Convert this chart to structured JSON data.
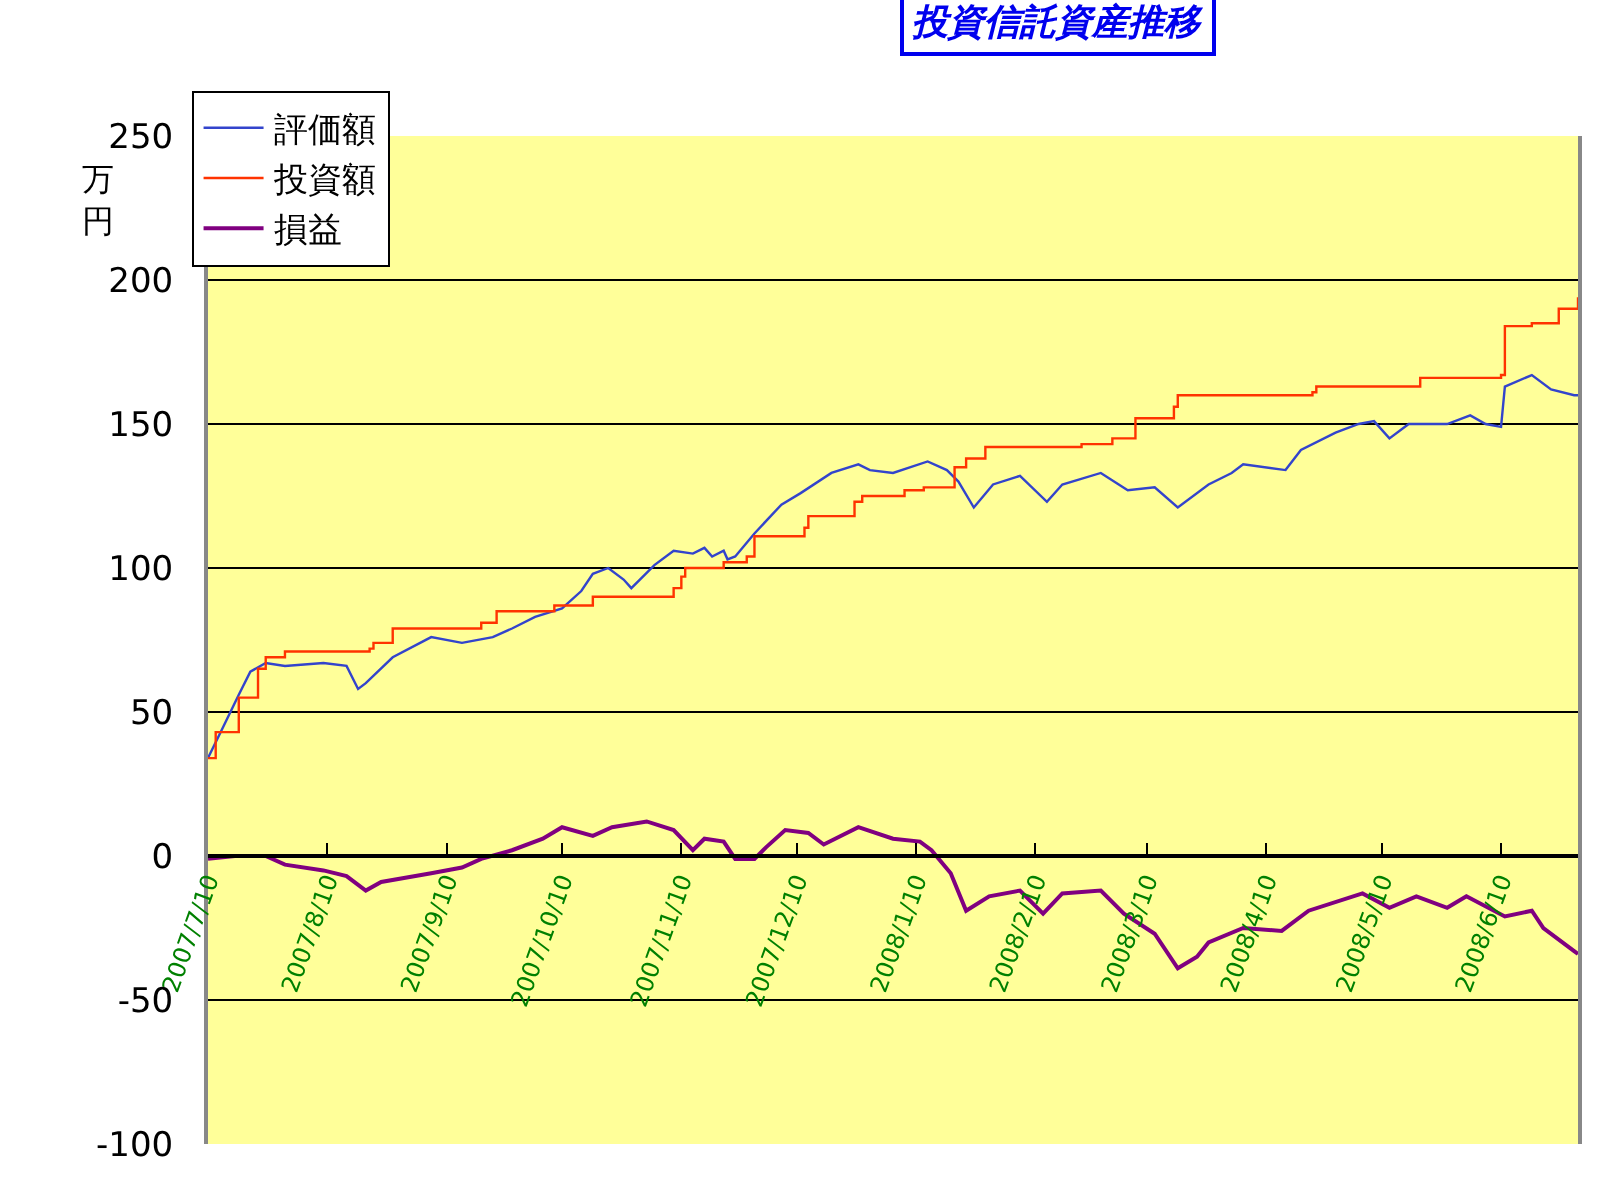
{
  "chart_data": {
    "type": "line",
    "title": "投資信託資産推移",
    "ylabel": "万円",
    "ylim": [
      -100,
      250
    ],
    "yticks": [
      -100,
      -50,
      0,
      50,
      100,
      150,
      200,
      250
    ],
    "xlim": [
      "2007-07-10",
      "2008-06-30"
    ],
    "xticks": [
      {
        "value": "2007-07-10",
        "label": "2007/7/10"
      },
      {
        "value": "2007-08-10",
        "label": "2007/8/10"
      },
      {
        "value": "2007-09-10",
        "label": "2007/9/10"
      },
      {
        "value": "2007-10-10",
        "label": "2007/10/10"
      },
      {
        "value": "2007-11-10",
        "label": "2007/11/10"
      },
      {
        "value": "2007-12-10",
        "label": "2007/12/10"
      },
      {
        "value": "2008-01-10",
        "label": "2008/1/10"
      },
      {
        "value": "2008-02-10",
        "label": "2008/2/10"
      },
      {
        "value": "2008-03-10",
        "label": "2008/3/10"
      },
      {
        "value": "2008-04-10",
        "label": "2008/4/10"
      },
      {
        "value": "2008-05-10",
        "label": "2008/5/10"
      },
      {
        "value": "2008-06-10",
        "label": "2008/6/10"
      }
    ],
    "grid": "y",
    "legend": "top left",
    "marker": "none",
    "line_style": "solid",
    "series": [
      {
        "name": "評価額",
        "color": "#3344cc",
        "x": [
          "2007-07-10",
          "2007-07-14",
          "2007-07-18",
          "2007-07-21",
          "2007-07-25",
          "2007-07-30",
          "2007-08-09",
          "2007-08-15",
          "2007-08-18",
          "2007-08-20",
          "2007-08-27",
          "2007-09-06",
          "2007-09-14",
          "2007-09-22",
          "2007-09-27",
          "2007-10-03",
          "2007-10-10",
          "2007-10-15",
          "2007-10-18",
          "2007-10-22",
          "2007-10-26",
          "2007-10-28",
          "2007-11-03",
          "2007-11-08",
          "2007-11-13",
          "2007-11-16",
          "2007-11-18",
          "2007-11-21",
          "2007-11-22",
          "2007-11-24",
          "2007-11-29",
          "2007-12-06",
          "2007-12-11",
          "2007-12-19",
          "2007-12-26",
          "2007-12-29",
          "2008-01-04",
          "2008-01-13",
          "2008-01-18",
          "2008-01-21",
          "2008-01-25",
          "2008-01-30",
          "2008-02-06",
          "2008-02-13",
          "2008-02-17",
          "2008-02-27",
          "2008-03-05",
          "2008-03-12",
          "2008-03-18",
          "2008-03-26",
          "2008-04-01",
          "2008-04-04",
          "2008-04-15",
          "2008-04-19",
          "2008-04-28",
          "2008-05-04",
          "2008-05-08",
          "2008-05-12",
          "2008-05-17",
          "2008-05-27",
          "2008-06-02",
          "2008-06-06",
          "2008-06-10",
          "2008-06-11",
          "2008-06-18",
          "2008-06-23",
          "2008-06-29",
          "2008-06-30"
        ],
        "values": [
          34,
          45,
          56,
          64,
          67,
          66,
          67,
          66,
          58,
          60,
          69,
          76,
          74,
          76,
          79,
          83,
          86,
          92,
          98,
          100,
          96,
          93,
          101,
          106,
          105,
          107,
          104,
          106,
          103,
          104,
          112,
          122,
          126,
          133,
          136,
          134,
          133,
          137,
          134,
          130,
          121,
          129,
          132,
          123,
          129,
          133,
          127,
          128,
          121,
          129,
          133,
          136,
          134,
          141,
          147,
          150,
          151,
          145,
          150,
          150,
          153,
          150,
          149,
          163,
          167,
          162,
          160,
          160
        ]
      },
      {
        "name": "投資額",
        "color": "#ff3300",
        "type": "step",
        "x": [
          "2007-07-10",
          "2007-07-12",
          "2007-07-18",
          "2007-07-23",
          "2007-07-25",
          "2007-07-30",
          "2007-08-21",
          "2007-08-22",
          "2007-08-27",
          "2007-09-19",
          "2007-09-23",
          "2007-10-08",
          "2007-10-18",
          "2007-11-08",
          "2007-11-10",
          "2007-11-11",
          "2007-11-21",
          "2007-11-27",
          "2007-11-29",
          "2007-12-12",
          "2007-12-13",
          "2007-12-25",
          "2007-12-27",
          "2008-01-07",
          "2008-01-12",
          "2008-01-20",
          "2008-01-23",
          "2008-01-28",
          "2008-02-22",
          "2008-03-01",
          "2008-03-07",
          "2008-03-17",
          "2008-03-18",
          "2008-04-22",
          "2008-04-23",
          "2008-05-20",
          "2008-06-10",
          "2008-06-11",
          "2008-06-18",
          "2008-06-25",
          "2008-06-30"
        ],
        "values": [
          34,
          43,
          55,
          65,
          69,
          71,
          72,
          74,
          79,
          81,
          85,
          87,
          90,
          93,
          97,
          100,
          102,
          104,
          111,
          114,
          118,
          123,
          125,
          127,
          128,
          135,
          138,
          142,
          143,
          145,
          152,
          156,
          160,
          161,
          163,
          166,
          167,
          184,
          185,
          190,
          194
        ]
      },
      {
        "name": "損益",
        "color": "#800080",
        "x": [
          "2007-07-10",
          "2007-07-17",
          "2007-07-25",
          "2007-07-30",
          "2007-08-09",
          "2007-08-15",
          "2007-08-20",
          "2007-08-24",
          "2007-09-06",
          "2007-09-14",
          "2007-09-19",
          "2007-09-27",
          "2007-10-05",
          "2007-10-10",
          "2007-10-18",
          "2007-10-23",
          "2007-11-01",
          "2007-11-08",
          "2007-11-13",
          "2007-11-16",
          "2007-11-21",
          "2007-11-24",
          "2007-11-29",
          "2007-12-02",
          "2007-12-07",
          "2007-12-13",
          "2007-12-17",
          "2007-12-26",
          "2008-01-04",
          "2008-01-11",
          "2008-01-14",
          "2008-01-19",
          "2008-01-23",
          "2008-01-29",
          "2008-02-06",
          "2008-02-12",
          "2008-02-17",
          "2008-02-27",
          "2008-03-04",
          "2008-03-12",
          "2008-03-18",
          "2008-03-23",
          "2008-03-26",
          "2008-04-04",
          "2008-04-14",
          "2008-04-21",
          "2008-05-05",
          "2008-05-12",
          "2008-05-19",
          "2008-05-27",
          "2008-06-01",
          "2008-06-11",
          "2008-06-18",
          "2008-06-21",
          "2008-06-29",
          "2008-06-30"
        ],
        "values": [
          -1,
          0,
          0,
          -3,
          -5,
          -7,
          -12,
          -9,
          -6,
          -4,
          -1,
          2,
          6,
          10,
          7,
          10,
          12,
          9,
          2,
          6,
          5,
          -1,
          -1,
          3,
          9,
          8,
          4,
          10,
          6,
          5,
          2,
          -6,
          -19,
          -14,
          -12,
          -20,
          -13,
          -12,
          -20,
          -27,
          -39,
          -35,
          -30,
          -25,
          -26,
          -19,
          -13,
          -18,
          -14,
          -18,
          -14,
          -21,
          -19,
          -25,
          -33,
          -34
        ]
      }
    ]
  }
}
